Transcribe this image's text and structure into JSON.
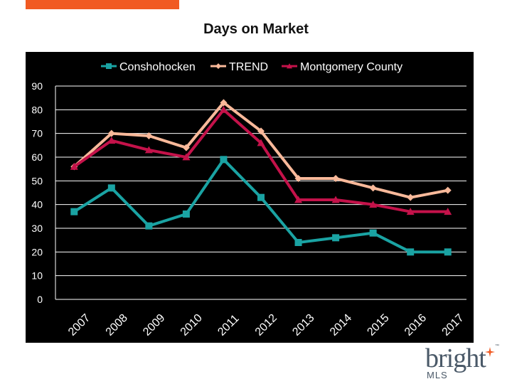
{
  "page": {
    "title": "Days on Market",
    "accent_bar_color": "#f15a22"
  },
  "logo": {
    "word": "bright",
    "sub": "MLS",
    "tm": "™",
    "text_color": "#4a5968",
    "spark_color": "#f15a22"
  },
  "chart_data": {
    "type": "line",
    "title": "Days on Market",
    "xlabel": "",
    "ylabel": "",
    "categories": [
      "2007",
      "2008",
      "2009",
      "2010",
      "2011",
      "2012",
      "2013",
      "2014",
      "2015",
      "2016",
      "2017"
    ],
    "ylim": [
      0,
      90
    ],
    "yticks": [
      0,
      10,
      20,
      30,
      40,
      50,
      60,
      70,
      80,
      90
    ],
    "grid": true,
    "legend_position": "top",
    "background": "#000000",
    "series": [
      {
        "name": "Conshohocken",
        "color": "#1aa3a3",
        "marker": "square",
        "values": [
          37,
          47,
          31,
          36,
          59,
          43,
          24,
          26,
          28,
          20,
          20
        ]
      },
      {
        "name": "TREND",
        "color": "#f9b99a",
        "marker": "diamond",
        "values": [
          56,
          70,
          69,
          64,
          83,
          71,
          51,
          51,
          47,
          43,
          46
        ]
      },
      {
        "name": "Montgomery County",
        "color": "#c4124a",
        "marker": "triangle",
        "values": [
          56,
          67,
          63,
          60,
          80,
          66,
          42,
          42,
          40,
          37,
          37
        ]
      }
    ]
  }
}
